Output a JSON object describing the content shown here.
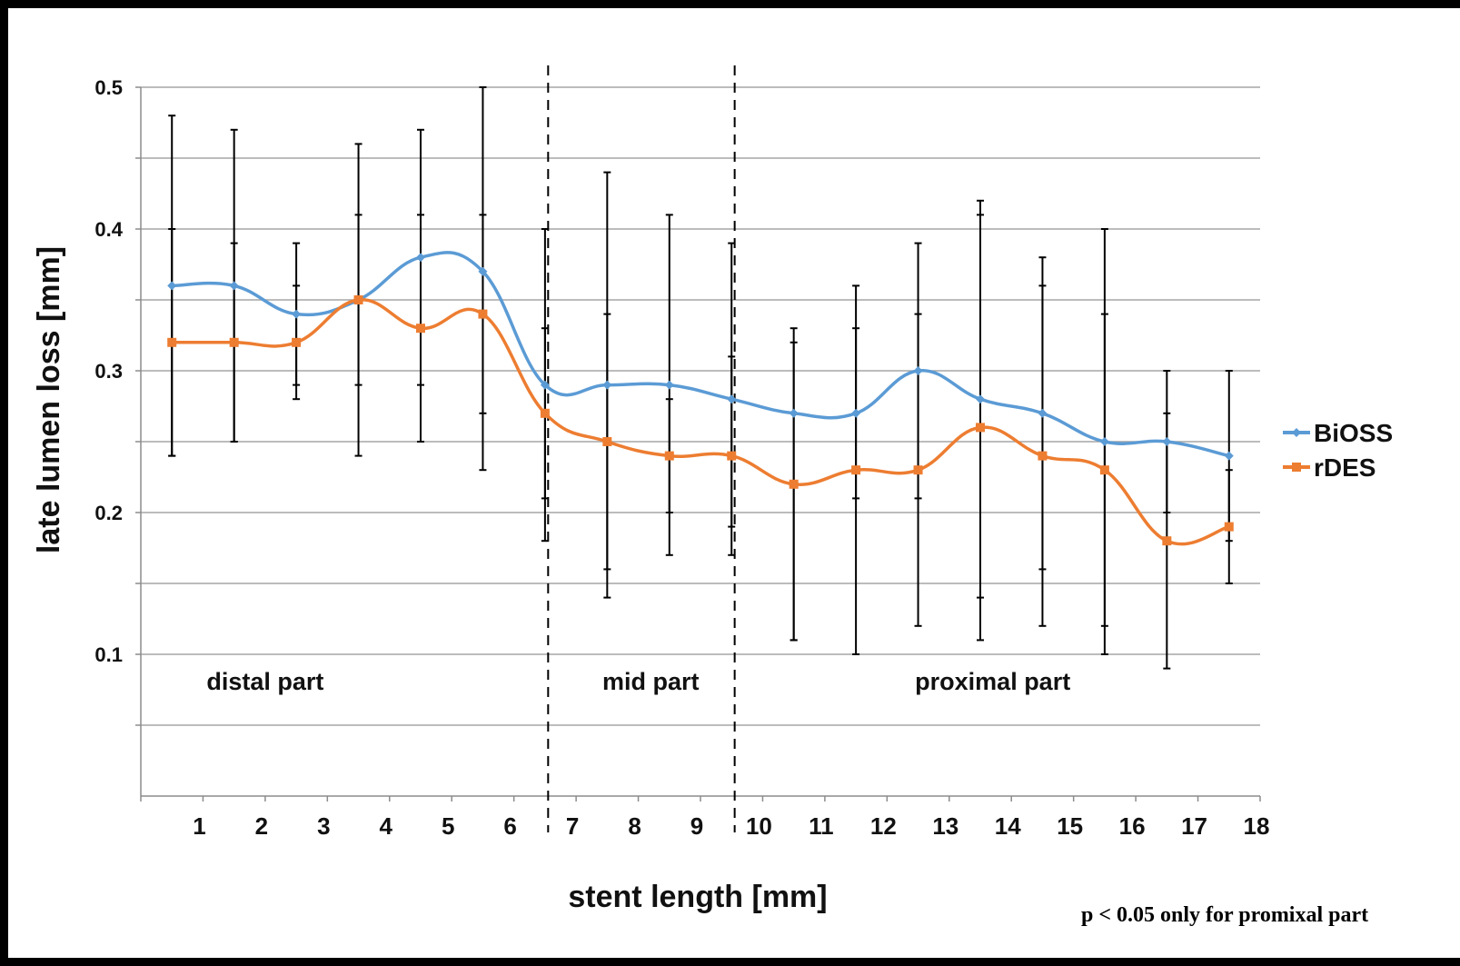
{
  "chart_data": {
    "type": "line",
    "title": "",
    "xlabel": "stent length [mm]",
    "ylabel": "late lumen loss [mm]",
    "ylim": [
      0,
      0.5
    ],
    "y_ticks": [
      "0.1",
      "0.2",
      "0.3",
      "0.4",
      "0.5"
    ],
    "x_ticks": [
      "1",
      "2",
      "3",
      "4",
      "5",
      "6",
      "7",
      "8",
      "9",
      "10",
      "11",
      "12",
      "13",
      "14",
      "15",
      "16",
      "17",
      "18"
    ],
    "x": [
      0.5,
      1.5,
      2.5,
      3.5,
      4.5,
      5.5,
      6.5,
      7.5,
      8.5,
      9.5,
      10.5,
      11.5,
      12.5,
      13.5,
      14.5,
      15.5,
      16.5,
      17.5
    ],
    "grid": true,
    "legend_position": "right",
    "series": [
      {
        "name": "BiOSS",
        "color": "#5b9bd5",
        "marker": "diamond",
        "values": [
          0.36,
          0.36,
          0.34,
          0.35,
          0.38,
          0.37,
          0.29,
          0.29,
          0.29,
          0.28,
          0.27,
          0.27,
          0.3,
          0.28,
          0.27,
          0.25,
          0.25,
          0.24
        ],
        "error_low": [
          0.24,
          0.25,
          0.28,
          0.29,
          0.29,
          0.27,
          0.21,
          0.16,
          0.2,
          0.19,
          0.11,
          0.21,
          0.21,
          0.14,
          0.16,
          0.12,
          0.2,
          0.18
        ],
        "error_high": [
          0.48,
          0.47,
          0.39,
          0.41,
          0.47,
          0.5,
          0.4,
          0.44,
          0.41,
          0.39,
          0.33,
          0.36,
          0.39,
          0.42,
          0.38,
          0.4,
          0.3,
          0.3
        ]
      },
      {
        "name": "rDES",
        "color": "#ed7d31",
        "marker": "square",
        "values": [
          0.32,
          0.32,
          0.32,
          0.35,
          0.33,
          0.34,
          0.27,
          0.25,
          0.24,
          0.24,
          0.22,
          0.23,
          0.23,
          0.26,
          0.24,
          0.23,
          0.18,
          0.19
        ],
        "error_low": [
          0.24,
          0.25,
          0.29,
          0.24,
          0.25,
          0.23,
          0.18,
          0.14,
          0.17,
          0.17,
          0.11,
          0.1,
          0.12,
          0.11,
          0.12,
          0.1,
          0.09,
          0.15
        ],
        "error_high": [
          0.4,
          0.39,
          0.36,
          0.46,
          0.41,
          0.41,
          0.33,
          0.34,
          0.28,
          0.31,
          0.32,
          0.33,
          0.34,
          0.41,
          0.36,
          0.34,
          0.27,
          0.23
        ]
      }
    ],
    "region_dividers_x": [
      6.55,
      9.55
    ],
    "annotations": {
      "regions": [
        {
          "label": "distal part",
          "x": 2.0
        },
        {
          "label": "mid part",
          "x": 8.2
        },
        {
          "label": "proximal part",
          "x": 13.7
        }
      ],
      "region_label_y": 0.075,
      "footnote": "p < 0.05 only for promixal part"
    }
  }
}
